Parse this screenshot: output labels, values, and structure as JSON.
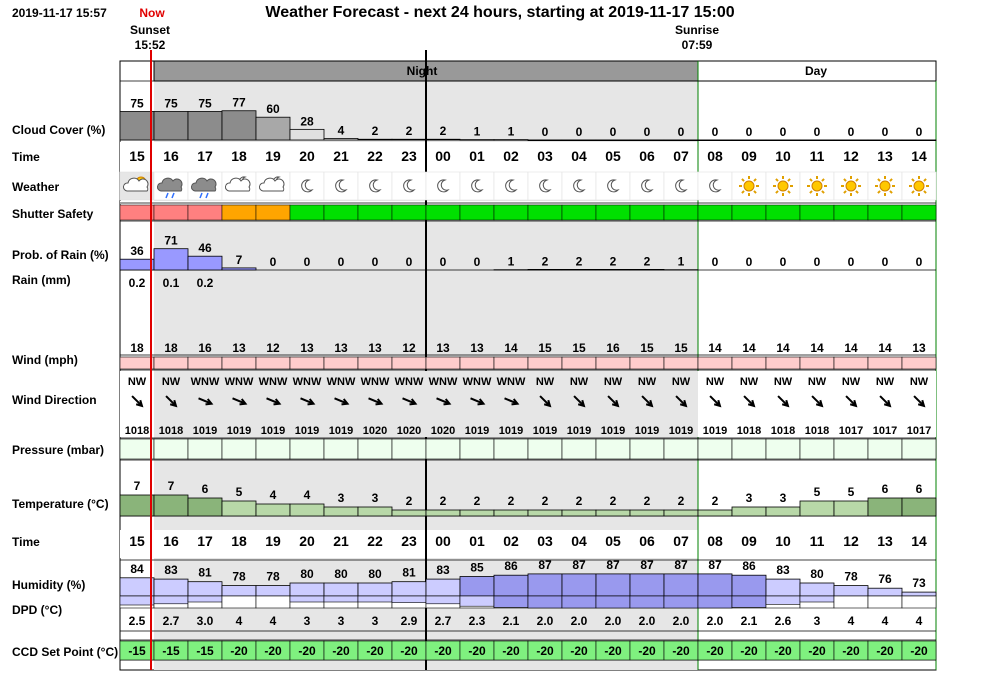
{
  "header": {
    "current_time": "2019-11-17 15:57",
    "now_label": "Now",
    "title": "Weather Forecast - next 24 hours, starting at 2019-11-17 15:00",
    "sunset_label": "Sunset",
    "sunset_time": "15:52",
    "sunrise_label": "Sunrise",
    "sunrise_time": "07:59"
  },
  "bands": {
    "night": "Night",
    "day": "Day"
  },
  "row_labels": {
    "cloud": "Cloud Cover (%)",
    "time": "Time",
    "weather": "Weather",
    "shutter": "Shutter Safety",
    "rain_prob": "Prob. of Rain (%)",
    "rain_mm": "Rain (mm)",
    "wind": "Wind (mph)",
    "wind_dir": "Wind Direction",
    "pressure": "Pressure (mbar)",
    "temp": "Temperature (°C)",
    "time2": "Time",
    "humidity": "Humidity (%)",
    "dpd": "DPD (°C)",
    "ccd": "CCD Set Point (°C)"
  },
  "colors": {
    "cloud": "#8c8c8c",
    "night_bg": "#e6e6e6",
    "rain_prob": "#9999ff",
    "wind": "#ffcccc",
    "pressure": "#eeffee",
    "temp": "#8ab47a",
    "humidity": "#9999ee",
    "ccd": "#7ff07f",
    "shutter_red": "#ff8080",
    "shutter_orange": "#ffa500",
    "shutter_green": "#00e000",
    "now_line": "#e00000"
  },
  "chart_data": {
    "type": "table",
    "hours": [
      "15",
      "16",
      "17",
      "18",
      "19",
      "20",
      "21",
      "22",
      "23",
      "00",
      "01",
      "02",
      "03",
      "04",
      "05",
      "06",
      "07",
      "08",
      "09",
      "10",
      "11",
      "12",
      "13",
      "14"
    ],
    "cloud_cover": [
      75,
      75,
      75,
      77,
      60,
      28,
      4,
      2,
      2,
      2,
      1,
      1,
      0,
      0,
      0,
      0,
      0,
      0,
      0,
      0,
      0,
      0,
      0,
      0
    ],
    "weather_icons": [
      "partly-cloudy-day-icon",
      "rain-cloud-icon",
      "rain-cloud-icon",
      "partly-cloudy-night-icon",
      "partly-cloudy-night-icon",
      "moon-icon",
      "moon-icon",
      "moon-icon",
      "moon-icon",
      "moon-icon",
      "moon-icon",
      "moon-icon",
      "moon-icon",
      "moon-icon",
      "moon-icon",
      "moon-icon",
      "moon-icon",
      "moon-icon",
      "sun-icon",
      "sun-icon",
      "sun-icon",
      "sun-icon",
      "sun-icon",
      "sun-icon"
    ],
    "shutter_safety": [
      "red",
      "red",
      "red",
      "orange",
      "orange",
      "green",
      "green",
      "green",
      "green",
      "green",
      "green",
      "green",
      "green",
      "green",
      "green",
      "green",
      "green",
      "green",
      "green",
      "green",
      "green",
      "green",
      "green",
      "green"
    ],
    "rain_probability": [
      36,
      71,
      46,
      7,
      0,
      0,
      0,
      0,
      0,
      0,
      0,
      1,
      2,
      2,
      2,
      2,
      1,
      0,
      0,
      0,
      0,
      0,
      0,
      0
    ],
    "rain_mm": [
      "0.2",
      "0.1",
      "0.2",
      "",
      "",
      "",
      "",
      "",
      "",
      "",
      "",
      "",
      "",
      "",
      "",
      "",
      "",
      "",
      "",
      "",
      "",
      "",
      "",
      ""
    ],
    "wind_mph": [
      18,
      18,
      16,
      13,
      12,
      13,
      13,
      13,
      12,
      13,
      13,
      14,
      15,
      15,
      16,
      15,
      15,
      14,
      14,
      14,
      14,
      14,
      14,
      13
    ],
    "wind_direction": [
      "NW",
      "NW",
      "WNW",
      "WNW",
      "WNW",
      "WNW",
      "WNW",
      "WNW",
      "WNW",
      "WNW",
      "WNW",
      "WNW",
      "NW",
      "NW",
      "NW",
      "NW",
      "NW",
      "NW",
      "NW",
      "NW",
      "NW",
      "NW",
      "NW",
      "NW"
    ],
    "pressure_mbar": [
      1018,
      1018,
      1019,
      1019,
      1019,
      1019,
      1019,
      1020,
      1020,
      1020,
      1019,
      1019,
      1019,
      1019,
      1019,
      1019,
      1019,
      1019,
      1018,
      1018,
      1018,
      1017,
      1017,
      1017
    ],
    "temperature_c": [
      7,
      7,
      6,
      5,
      4,
      4,
      3,
      3,
      2,
      2,
      2,
      2,
      2,
      2,
      2,
      2,
      2,
      2,
      3,
      3,
      5,
      5,
      6,
      6
    ],
    "humidity_pct": [
      84,
      83,
      81,
      78,
      78,
      80,
      80,
      80,
      81,
      83,
      85,
      86,
      87,
      87,
      87,
      87,
      87,
      87,
      86,
      83,
      80,
      78,
      76,
      73
    ],
    "dpd_c": [
      "2.5",
      "2.7",
      "3.0",
      "4",
      "4",
      "3",
      "3",
      "3",
      "2.9",
      "2.7",
      "2.3",
      "2.1",
      "2.0",
      "2.0",
      "2.0",
      "2.0",
      "2.0",
      "2.0",
      "2.1",
      "2.6",
      "3",
      "4",
      "4",
      "4"
    ],
    "ccd_set_point_c": [
      -15,
      -15,
      -15,
      -20,
      -20,
      -20,
      -20,
      -20,
      -20,
      -20,
      -20,
      -20,
      -20,
      -20,
      -20,
      -20,
      -20,
      -20,
      -20,
      -20,
      -20,
      -20,
      -20,
      -20
    ]
  }
}
